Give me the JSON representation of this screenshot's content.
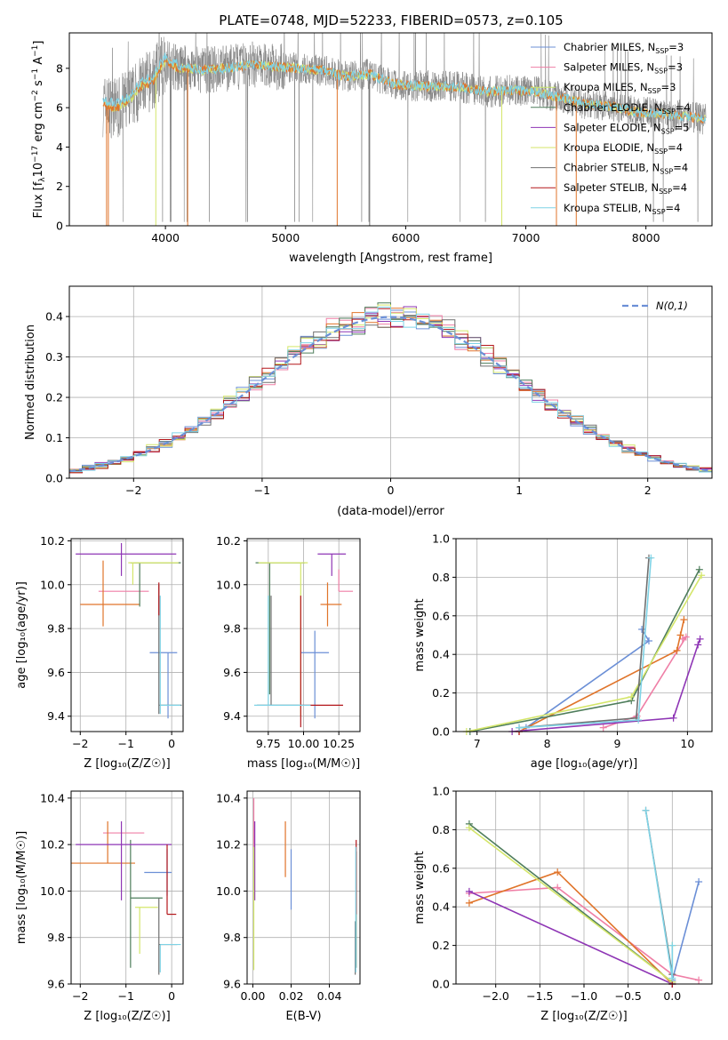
{
  "figure": {
    "title": "PLATE=0748, MJD=52233, FIBERID=0573, z=0.105"
  },
  "colors": {
    "Chabrier MILES": "#6b8fd6",
    "Salpeter MILES": "#ef7fa6",
    "Kroupa MILES": "#c8e86a",
    "Chabrier ELODIE": "#4e7d5b",
    "Salpeter ELODIE": "#8e35b5",
    "Kroupa ELODIE": "#d4e66a",
    "Chabrier STELIB": "#707070",
    "Salpeter STELIB": "#b3161a",
    "Kroupa STELIB": "#7fd3e6",
    "orange": "#e0742a",
    "data": "#7f7f7f"
  },
  "chart_data": [
    {
      "id": "spectrum",
      "type": "line",
      "xlabel": "wavelength [Angstrom, rest frame]",
      "ylabel": "Flux [f_λ 10^-17 erg cm^-2 s^-1 A^-1]",
      "xlim": [
        3200,
        8550
      ],
      "ylim": [
        0,
        9.8
      ],
      "xticks": [
        4000,
        5000,
        6000,
        7000,
        8000
      ],
      "yticks": [
        0,
        2,
        4,
        6,
        8
      ],
      "grid": false,
      "legend_position": "right",
      "continuum_x": [
        3500,
        3600,
        3700,
        3800,
        3900,
        4000,
        4100,
        4200,
        4300,
        4500,
        4700,
        4900,
        5100,
        5300,
        5500,
        5700,
        5900,
        6100,
        6300,
        6500,
        6700,
        6900,
        7100,
        7300,
        7500,
        7700,
        7900,
        8100,
        8300,
        8500
      ],
      "continuum_y": [
        6.1,
        6.0,
        6.4,
        7.1,
        7.4,
        8.4,
        8.0,
        8.0,
        7.9,
        8.0,
        8.2,
        8.1,
        8.0,
        7.9,
        7.6,
        7.7,
        7.2,
        7.1,
        7.1,
        7.0,
        6.8,
        6.9,
        6.8,
        6.5,
        6.2,
        6.1,
        5.8,
        5.7,
        5.6,
        5.4
      ],
      "legend": [
        {
          "label": "Chabrier MILES, N",
          "sub": "SSP",
          "suffix": "=3"
        },
        {
          "label": "Salpeter MILES, N",
          "sub": "SSP",
          "suffix": "=3"
        },
        {
          "label": "Kroupa MILES, N",
          "sub": "SSP",
          "suffix": "=3"
        },
        {
          "label": "Chabrier ELODIE, N",
          "sub": "SSP",
          "suffix": "=4"
        },
        {
          "label": "Salpeter ELODIE, N",
          "sub": "SSP",
          "suffix": "=5"
        },
        {
          "label": "Kroupa ELODIE, N",
          "sub": "SSP",
          "suffix": "=4"
        },
        {
          "label": "Chabrier STELIB, N",
          "sub": "SSP",
          "suffix": "=4"
        },
        {
          "label": "Salpeter STELIB, N",
          "sub": "SSP",
          "suffix": "=4"
        },
        {
          "label": "Kroupa STELIB, N",
          "sub": "SSP",
          "suffix": "=4"
        }
      ]
    },
    {
      "id": "residuals",
      "type": "histogram",
      "xlabel": "(data-model)/error",
      "ylabel": "Normed distribution",
      "xlim": [
        -2.5,
        2.5
      ],
      "ylim": [
        0,
        0.475
      ],
      "xticks": [
        -2,
        -1,
        0,
        1,
        2
      ],
      "yticks": [
        0.0,
        0.1,
        0.2,
        0.3,
        0.4
      ],
      "grid": true,
      "legend_position": "top-right",
      "gaussian_label": "N(0,1)",
      "gaussian": {
        "mu": 0,
        "sigma": 1
      }
    },
    {
      "id": "age-vs-Z",
      "type": "errorbar",
      "xlabel": "Z [log10(Z/Z☉)]",
      "ylabel": "age [log10(age/yr)]",
      "xlim": [
        -2.2,
        0.25
      ],
      "ylim": [
        9.33,
        10.21
      ],
      "xticks": [
        -2,
        -1,
        0
      ],
      "yticks": [
        9.4,
        9.6,
        9.8,
        10.0,
        10.2
      ],
      "grid": true,
      "points": [
        {
          "c": "Chabrier MILES",
          "x": -0.08,
          "xl": 0.4,
          "xh": 0.2,
          "y": 9.69,
          "yl": 0.3,
          "yh": 0.0
        },
        {
          "c": "Salpeter MILES",
          "x": -1.0,
          "xl": 0.6,
          "xh": 0.5,
          "y": 9.97,
          "yl": 0.0,
          "yh": 0.0
        },
        {
          "c": "orange",
          "x": -1.5,
          "xl": 0.5,
          "xh": 0.8,
          "y": 9.91,
          "yl": 0.1,
          "yh": 0.2
        },
        {
          "c": "Chabrier ELODIE",
          "x": -0.7,
          "xl": 0.2,
          "xh": 0.9,
          "y": 10.1,
          "yl": 0.2,
          "yh": 0.0
        },
        {
          "c": "Salpeter ELODIE",
          "x": -1.1,
          "xl": 1.0,
          "xh": 1.2,
          "y": 10.14,
          "yl": 0.1,
          "yh": 0.05
        },
        {
          "c": "Kroupa ELODIE",
          "x": -0.85,
          "xl": 0.1,
          "xh": 1.0,
          "y": 10.1,
          "yl": 0.1,
          "yh": 0.0
        },
        {
          "c": "Chabrier STELIB",
          "x": -0.28,
          "xl": 0.0,
          "xh": 0.5,
          "y": 9.45,
          "yl": 0.04,
          "yh": 0.55
        },
        {
          "c": "Salpeter STELIB",
          "x": -0.28,
          "xl": 0.0,
          "xh": 0.0,
          "y": 9.96,
          "yl": 0.1,
          "yh": 0.05
        },
        {
          "c": "Kroupa STELIB",
          "x": -0.25,
          "xl": 0.0,
          "xh": 0.45,
          "y": 9.45,
          "yl": 0.04,
          "yh": 0.5
        }
      ]
    },
    {
      "id": "age-vs-mass",
      "type": "errorbar",
      "xlabel": "mass [log10(M/M☉)]",
      "ylabel": "",
      "xlim": [
        9.6,
        10.4
      ],
      "ylim": [
        9.33,
        10.21
      ],
      "xticks": [
        9.75,
        10.0,
        10.25
      ],
      "xticklabels": [
        "9.75",
        "10.00",
        "10.25"
      ],
      "yticks": [
        9.4,
        9.6,
        9.8,
        10.0,
        10.2
      ],
      "grid": true,
      "points": [
        {
          "c": "Chabrier MILES",
          "x": 10.08,
          "xl": 0.1,
          "xh": 0.1,
          "y": 9.69,
          "yl": 0.3,
          "yh": 0.1
        },
        {
          "c": "Salpeter MILES",
          "x": 10.25,
          "xl": 0.0,
          "xh": 0.1,
          "y": 9.97,
          "yl": 0.0,
          "yh": 0.1
        },
        {
          "c": "orange",
          "x": 10.17,
          "xl": 0.05,
          "xh": 0.1,
          "y": 9.91,
          "yl": 0.1,
          "yh": 0.1
        },
        {
          "c": "Chabrier ELODIE",
          "x": 9.76,
          "xl": 0.1,
          "xh": 0.25,
          "y": 10.1,
          "yl": 0.6,
          "yh": 0.0
        },
        {
          "c": "Salpeter ELODIE",
          "x": 10.2,
          "xl": 0.1,
          "xh": 0.1,
          "y": 10.14,
          "yl": 0.1,
          "yh": 0.0
        },
        {
          "c": "Kroupa ELODIE",
          "x": 9.98,
          "xl": 0.3,
          "xh": 0.05,
          "y": 10.1,
          "yl": 0.7,
          "yh": 0.0
        },
        {
          "c": "Chabrier STELIB",
          "x": 9.77,
          "xl": 0.1,
          "xh": 0.2,
          "y": 9.45,
          "yl": 0.0,
          "yh": 0.5
        },
        {
          "c": "Salpeter STELIB",
          "x": 9.98,
          "xl": 0.0,
          "xh": 0.3,
          "y": 9.45,
          "yl": 0.1,
          "yh": 0.5
        },
        {
          "c": "Kroupa STELIB",
          "x": 9.75,
          "xl": 0.1,
          "xh": 0.3,
          "y": 9.45,
          "yl": 0.0,
          "yh": 0.5
        }
      ]
    },
    {
      "id": "massweight-vs-age",
      "type": "line",
      "xlabel": "age [log10(age/yr)]",
      "ylabel": "mass weight",
      "xlim": [
        6.7,
        10.35
      ],
      "ylim": [
        0,
        1
      ],
      "xticks": [
        7,
        8,
        9,
        10
      ],
      "yticks": [
        0.0,
        0.2,
        0.4,
        0.6,
        0.8,
        1.0
      ],
      "grid": true,
      "series": [
        {
          "c": "Chabrier MILES",
          "x": [
            7.7,
            9.45,
            9.35
          ],
          "y": [
            0.02,
            0.47,
            0.53
          ]
        },
        {
          "c": "Salpeter MILES",
          "x": [
            8.8,
            9.28,
            9.98,
            9.93
          ],
          "y": [
            0.02,
            0.08,
            0.49,
            0.48
          ]
        },
        {
          "c": "orange",
          "x": [
            7.6,
            9.85,
            9.95,
            9.9
          ],
          "y": [
            0.0,
            0.42,
            0.58,
            0.5
          ]
        },
        {
          "c": "Chabrier ELODIE",
          "x": [
            6.9,
            9.2,
            10.17
          ],
          "y": [
            0.0,
            0.16,
            0.84
          ]
        },
        {
          "c": "Salpeter ELODIE",
          "x": [
            7.5,
            9.8,
            10.15,
            10.18
          ],
          "y": [
            0.0,
            0.07,
            0.45,
            0.48
          ]
        },
        {
          "c": "Kroupa ELODIE",
          "x": [
            6.85,
            9.2,
            10.2
          ],
          "y": [
            0.0,
            0.18,
            0.81
          ]
        },
        {
          "c": "Chabrier STELIB",
          "x": [
            7.6,
            9.27,
            9.45
          ],
          "y": [
            0.02,
            0.07,
            0.9
          ]
        },
        {
          "c": "Salpeter STELIB",
          "x": [
            7.6
          ],
          "y": [
            0.0
          ]
        },
        {
          "c": "Kroupa STELIB",
          "x": [
            7.6,
            9.3,
            9.48
          ],
          "y": [
            0.02,
            0.06,
            0.9
          ]
        }
      ]
    },
    {
      "id": "mass-vs-Z",
      "type": "errorbar",
      "xlabel": "Z [log10(Z/Z☉)]",
      "ylabel": "mass [log10(M/M☉)]",
      "xlim": [
        -2.2,
        0.25
      ],
      "ylim": [
        9.6,
        10.43
      ],
      "xticks": [
        -2,
        -1,
        0
      ],
      "yticks": [
        9.6,
        9.8,
        10.0,
        10.2,
        10.4
      ],
      "grid": true,
      "points": [
        {
          "c": "Chabrier MILES",
          "x": -0.1,
          "xl": 0.5,
          "xh": 0.1,
          "y": 10.08,
          "yl": 0.1,
          "yh": 0.1
        },
        {
          "c": "Salpeter MILES",
          "x": -1.0,
          "xl": 0.5,
          "xh": 0.4,
          "y": 10.25,
          "yl": 0.0,
          "yh": 0.0
        },
        {
          "c": "orange",
          "x": -1.4,
          "xl": 0.8,
          "xh": 0.6,
          "y": 10.12,
          "yl": 0.0,
          "yh": 0.18
        },
        {
          "c": "Chabrier ELODIE",
          "x": -0.9,
          "xl": 0.0,
          "xh": 0.7,
          "y": 9.97,
          "yl": 0.3,
          "yh": 0.25
        },
        {
          "c": "Salpeter ELODIE",
          "x": -1.1,
          "xl": 1.0,
          "xh": 1.1,
          "y": 10.2,
          "yl": 0.24,
          "yh": 0.1
        },
        {
          "c": "Kroupa ELODIE",
          "x": -0.7,
          "xl": 0.1,
          "xh": 0.4,
          "y": 9.93,
          "yl": 0.2,
          "yh": 0.0
        },
        {
          "c": "Chabrier STELIB",
          "x": -0.28,
          "xl": 0.0,
          "xh": 0.4,
          "y": 9.77,
          "yl": 0.13,
          "yh": 0.2
        },
        {
          "c": "Salpeter STELIB",
          "x": -0.1,
          "xl": 0.0,
          "xh": 0.2,
          "y": 9.9,
          "yl": 0.0,
          "yh": 0.3
        },
        {
          "c": "Kroupa STELIB",
          "x": -0.25,
          "xl": 0.0,
          "xh": 0.45,
          "y": 9.77,
          "yl": 0.12,
          "yh": 0.0
        }
      ]
    },
    {
      "id": "mass-vs-ebv",
      "type": "errorbar",
      "xlabel": "E(B-V)",
      "ylabel": "",
      "xlim": [
        -0.003,
        0.056
      ],
      "ylim": [
        9.6,
        10.43
      ],
      "xticks": [
        0.0,
        0.02,
        0.04
      ],
      "xticklabels": [
        "0.00",
        "0.02",
        "0.04"
      ],
      "yticks": [
        9.6,
        9.8,
        10.0,
        10.2,
        10.4
      ],
      "grid": true,
      "points": [
        {
          "c": "Chabrier MILES",
          "x": 0.02,
          "xl": 0,
          "xh": 0,
          "y": 10.08,
          "yl": 0.16,
          "yh": 0.1
        },
        {
          "c": "Salpeter MILES",
          "x": 0.0005,
          "xl": 0,
          "xh": 0,
          "y": 10.25,
          "yl": 0.1,
          "yh": 0.15
        },
        {
          "c": "orange",
          "x": 0.017,
          "xl": 0,
          "xh": 0,
          "y": 10.18,
          "yl": 0.12,
          "yh": 0.12
        },
        {
          "c": "Chabrier ELODIE",
          "x": 0.054,
          "xl": 0,
          "xh": 0,
          "y": 9.97,
          "yl": 0.3,
          "yh": 0.2
        },
        {
          "c": "Salpeter ELODIE",
          "x": 0.001,
          "xl": 0,
          "xh": 0,
          "y": 10.2,
          "yl": 0.24,
          "yh": 0.1
        },
        {
          "c": "Kroupa ELODIE",
          "x": 0.0005,
          "xl": 0,
          "xh": 0,
          "y": 9.93,
          "yl": 0.27,
          "yh": 0.26
        },
        {
          "c": "Chabrier STELIB",
          "x": 0.0535,
          "xl": 0,
          "xh": 0,
          "y": 9.77,
          "yl": 0.13,
          "yh": 0.1
        },
        {
          "c": "Salpeter STELIB",
          "x": 0.054,
          "xl": 0,
          "xh": 0,
          "y": 10.0,
          "yl": 0.1,
          "yh": 0.22
        },
        {
          "c": "Kroupa STELIB",
          "x": 0.0538,
          "xl": 0,
          "xh": 0,
          "y": 9.77,
          "yl": 0.12,
          "yh": 0.42
        }
      ]
    },
    {
      "id": "massweight-vs-Z",
      "type": "line",
      "xlabel": "Z [log10(Z/Z☉)]",
      "ylabel": "mass weight",
      "xlim": [
        -2.45,
        0.45
      ],
      "ylim": [
        0,
        1
      ],
      "xticks": [
        -2.0,
        -1.5,
        -1.0,
        -0.5,
        0.0
      ],
      "xticklabels": [
        "−2.0",
        "−1.5",
        "−1.0",
        "−0.5",
        "0.0"
      ],
      "yticks": [
        0.0,
        0.2,
        0.4,
        0.6,
        0.8,
        1.0
      ],
      "grid": true,
      "series": [
        {
          "c": "Chabrier MILES",
          "x": [
            0.3,
            0.0,
            0.0
          ],
          "y": [
            0.53,
            0.02,
            0.0
          ]
        },
        {
          "c": "Salpeter MILES",
          "x": [
            -2.3,
            -1.3,
            0.0,
            0.3
          ],
          "y": [
            0.47,
            0.5,
            0.05,
            0.02
          ]
        },
        {
          "c": "orange",
          "x": [
            -2.3,
            -1.3,
            0.0
          ],
          "y": [
            0.42,
            0.58,
            0.0
          ]
        },
        {
          "c": "Chabrier ELODIE",
          "x": [
            -2.3,
            0.0
          ],
          "y": [
            0.83,
            0.01
          ]
        },
        {
          "c": "Salpeter ELODIE",
          "x": [
            -2.3,
            0.0
          ],
          "y": [
            0.48,
            0.0
          ]
        },
        {
          "c": "Kroupa ELODIE",
          "x": [
            -2.3,
            0.0,
            0.0
          ],
          "y": [
            0.81,
            0.01,
            0.2
          ]
        },
        {
          "c": "Chabrier STELIB",
          "x": [
            -0.3,
            0.0
          ],
          "y": [
            0.9,
            0.05
          ]
        },
        {
          "c": "Salpeter STELIB",
          "x": [
            0.0
          ],
          "y": [
            0.0
          ]
        },
        {
          "c": "Kroupa STELIB",
          "x": [
            -0.3,
            0.0,
            0.0
          ],
          "y": [
            0.9,
            0.03,
            0.2
          ]
        }
      ]
    }
  ]
}
